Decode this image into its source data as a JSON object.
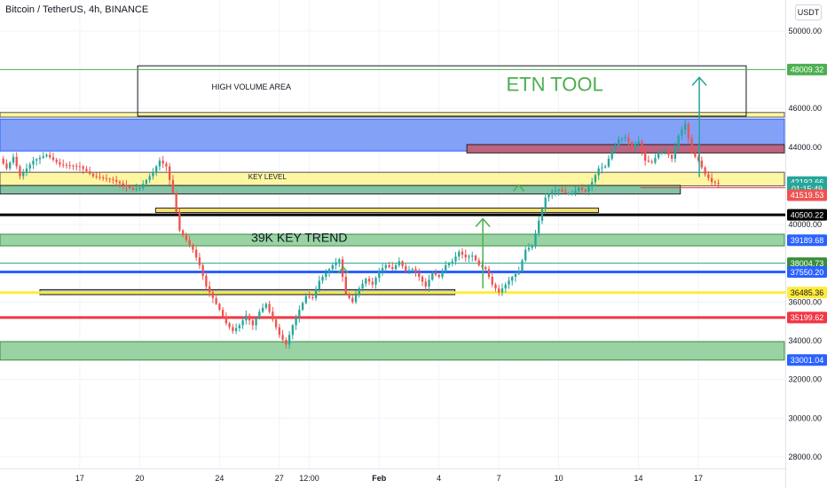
{
  "header": {
    "symbol": "Bitcoin / TetherUS, 4h, BINANCE",
    "currency": "USDT"
  },
  "chart_data": {
    "type": "candlestick",
    "y_axis": {
      "range": [
        27400,
        51600
      ],
      "ticks": [
        50000,
        48000,
        46000,
        44000,
        42000,
        40000,
        38000,
        36000,
        34000,
        32000,
        30000,
        28000
      ],
      "tick_labels": [
        "50000.00",
        "48000.00",
        "46000.00",
        "44000.00",
        "42000.00",
        "40000.00",
        "38000.00",
        "36000.00",
        "34000.00",
        "32000.00",
        "30000.00",
        "28000.00"
      ]
    },
    "x_axis": {
      "ticks": [
        {
          "label": "17",
          "day": 17
        },
        {
          "label": "20",
          "day": 20
        },
        {
          "label": "24",
          "day": 24
        },
        {
          "label": "27",
          "day": 27
        },
        {
          "label": "12:00",
          "day": 28.5
        },
        {
          "label": "Feb",
          "day": 32
        },
        {
          "label": "4",
          "day": 35
        },
        {
          "label": "7",
          "day": 38
        },
        {
          "label": "10",
          "day": 41
        },
        {
          "label": "14",
          "day": 45
        },
        {
          "label": "17",
          "day": 48
        }
      ],
      "range_days": [
        13.0,
        54.45
      ]
    },
    "price_labels": [
      {
        "text": "48009.32",
        "value": 48009.32,
        "color": "#4caf50"
      },
      {
        "text": "42192.66",
        "value": 42192.66,
        "color": "#26a69a"
      },
      {
        "text": "01:15:49",
        "value": 41860,
        "color": "#26a69a"
      },
      {
        "text": "41519.53",
        "value": 41519.53,
        "color": "#ef5350"
      },
      {
        "text": "40500.22",
        "value": 40500.22,
        "color": "#000000"
      },
      {
        "text": "39189.68",
        "value": 39189.68,
        "color": "#2962ff"
      },
      {
        "text": "38004.73",
        "value": 38004.73,
        "color": "#388e3c"
      },
      {
        "text": "37550.20",
        "value": 37550.2,
        "color": "#2962ff"
      },
      {
        "text": "36485.36",
        "value": 36485.36,
        "color": "#ffeb3b"
      },
      {
        "text": "35199.62",
        "value": 35199.62,
        "color": "#f23645"
      },
      {
        "text": "33001.04",
        "value": 33001.04,
        "color": "#2962ff"
      }
    ],
    "horizontal_lines": [
      {
        "value": 48009.32,
        "color": "#4caf50",
        "width": 1
      },
      {
        "value": 38004.73,
        "color": "#26a69a",
        "width": 1
      },
      {
        "value": 37550.2,
        "color": "#2962ff",
        "width": 3
      },
      {
        "value": 36485.36,
        "color": "#ffeb3b",
        "width": 3
      },
      {
        "value": 35199.62,
        "color": "#f23645",
        "width": 3
      },
      {
        "value": 40500.22,
        "color": "#000000",
        "width": 3
      }
    ],
    "zones": [
      {
        "y1": 45550,
        "y2": 45790,
        "x1_day": 13.0,
        "x2_day": 53.7,
        "fill": "#fff59d",
        "stroke": "#555555"
      },
      {
        "y1": 43800,
        "y2": 45450,
        "x1_day": 13.0,
        "x2_day": 53.7,
        "fill": "#7b9cf7",
        "stroke": "#2962ff"
      },
      {
        "y1": 43700,
        "y2": 44130,
        "x1_day": 36.4,
        "x2_day": 53.7,
        "fill": "#c2607a",
        "stroke": "#222222"
      },
      {
        "y1": 42000,
        "y2": 42700,
        "x1_day": 13.0,
        "x2_day": 53.7,
        "fill": "#fff59d",
        "stroke": "#555555"
      },
      {
        "y1": 41580,
        "y2": 42020,
        "x1_day": 13.0,
        "x2_day": 47.1,
        "fill": "#7cc1a0",
        "stroke": "#222222"
      },
      {
        "y1": 40620,
        "y2": 40850,
        "x1_day": 20.8,
        "x2_day": 43.0,
        "fill": "#f6e06b",
        "stroke": "#222222"
      },
      {
        "y1": 38900,
        "y2": 39500,
        "x1_day": 13.0,
        "x2_day": 53.7,
        "fill": "#93d19e",
        "stroke": "#388e3c"
      },
      {
        "y1": 36380,
        "y2": 36640,
        "x1_day": 15.0,
        "x2_day": 35.8,
        "fill": "#8ea6e0",
        "stroke": "#222222"
      },
      {
        "y1": 33000,
        "y2": 33950,
        "x1_day": 13.0,
        "x2_day": 53.7,
        "fill": "#93d19e",
        "stroke": "#388e3c"
      }
    ],
    "high_volume_box": {
      "y1": 45600,
      "y2": 48200,
      "x1_day": 19.9,
      "x2_day": 50.4
    },
    "annotations": [
      {
        "text": "HIGH VOLUME AREA",
        "day": 25.6,
        "value": 46980,
        "size": 9,
        "color": "#131722"
      },
      {
        "text": "KEY LEVEL",
        "day": 26.4,
        "value": 42350,
        "size": 8,
        "color": "#131722"
      },
      {
        "text": "39K KEY TREND",
        "day": 28.0,
        "value": 39100,
        "size": 14,
        "color": "#131722"
      },
      {
        "text": "ETN TOOL",
        "day": 40.8,
        "value": 46900,
        "size": 22,
        "color": "#4caf50"
      }
    ],
    "arrows": [
      {
        "day": 37.2,
        "from": 36700,
        "to": 40300,
        "color": "#4caf50"
      },
      {
        "day": 48.05,
        "from": 42450,
        "to": 47600,
        "color": "#26a69a"
      }
    ],
    "chevrons": [
      {
        "day": 30.2,
        "value": 37800,
        "color": "#4caf50"
      },
      {
        "day": 39.0,
        "value": 42050,
        "color": "#4caf50"
      }
    ],
    "trend_line": {
      "value": 41900,
      "x1_day": 45.1,
      "x2_day": 53.7,
      "color": "#f23645"
    },
    "candles": {
      "start_day": 13.0,
      "step_days": 0.1667,
      "up_color": "#26a69a",
      "down_color": "#ef5350",
      "path": [
        [
          0,
          43400
        ],
        [
          2,
          42900
        ],
        [
          4,
          43500
        ],
        [
          6,
          42500
        ],
        [
          10,
          43300
        ],
        [
          14,
          43600
        ],
        [
          18,
          43100
        ],
        [
          24,
          43000
        ],
        [
          28,
          42500
        ],
        [
          34,
          42300
        ],
        [
          40,
          41800
        ],
        [
          42,
          41900
        ],
        [
          46,
          42700
        ],
        [
          48,
          43300
        ],
        [
          50,
          43000
        ],
        [
          52,
          41600
        ],
        [
          54,
          39700
        ],
        [
          56,
          39200
        ],
        [
          58,
          38700
        ],
        [
          60,
          37900
        ],
        [
          62,
          36800
        ],
        [
          64,
          36200
        ],
        [
          66,
          35600
        ],
        [
          68,
          34900
        ],
        [
          70,
          34500
        ],
        [
          72,
          34800
        ],
        [
          74,
          35300
        ],
        [
          76,
          34800
        ],
        [
          78,
          35500
        ],
        [
          80,
          35900
        ],
        [
          82,
          35100
        ],
        [
          84,
          34300
        ],
        [
          86,
          33800
        ],
        [
          88,
          34800
        ],
        [
          90,
          35600
        ],
        [
          92,
          36300
        ],
        [
          94,
          36200
        ],
        [
          96,
          37100
        ],
        [
          98,
          37500
        ],
        [
          100,
          37900
        ],
        [
          102,
          38200
        ],
        [
          104,
          36400
        ],
        [
          106,
          36000
        ],
        [
          108,
          36700
        ],
        [
          110,
          37200
        ],
        [
          112,
          36900
        ],
        [
          114,
          37600
        ],
        [
          116,
          37900
        ],
        [
          118,
          37700
        ],
        [
          120,
          38100
        ],
        [
          122,
          37600
        ],
        [
          124,
          37700
        ],
        [
          126,
          37300
        ],
        [
          128,
          36800
        ],
        [
          130,
          37500
        ],
        [
          132,
          37300
        ],
        [
          134,
          37900
        ],
        [
          136,
          38100
        ],
        [
          138,
          38600
        ],
        [
          140,
          38300
        ],
        [
          142,
          38400
        ],
        [
          144,
          37900
        ],
        [
          146,
          37700
        ],
        [
          148,
          36900
        ],
        [
          150,
          36500
        ],
        [
          152,
          36900
        ],
        [
          154,
          37300
        ],
        [
          156,
          37600
        ],
        [
          158,
          38700
        ],
        [
          160,
          38900
        ],
        [
          162,
          40200
        ],
        [
          164,
          41400
        ],
        [
          166,
          41700
        ],
        [
          168,
          41800
        ],
        [
          170,
          41600
        ],
        [
          172,
          41600
        ],
        [
          174,
          41900
        ],
        [
          176,
          41700
        ],
        [
          178,
          42200
        ],
        [
          180,
          42900
        ],
        [
          182,
          43000
        ],
        [
          184,
          43800
        ],
        [
          186,
          44400
        ],
        [
          188,
          44500
        ],
        [
          190,
          44000
        ],
        [
          192,
          44300
        ],
        [
          194,
          43300
        ],
        [
          196,
          43200
        ],
        [
          198,
          43700
        ],
        [
          200,
          43800
        ],
        [
          202,
          43400
        ],
        [
          204,
          44600
        ],
        [
          206,
          45200
        ],
        [
          208,
          43700
        ],
        [
          210,
          43300
        ],
        [
          212,
          42600
        ],
        [
          214,
          42200
        ],
        [
          216,
          42100
        ]
      ]
    }
  }
}
